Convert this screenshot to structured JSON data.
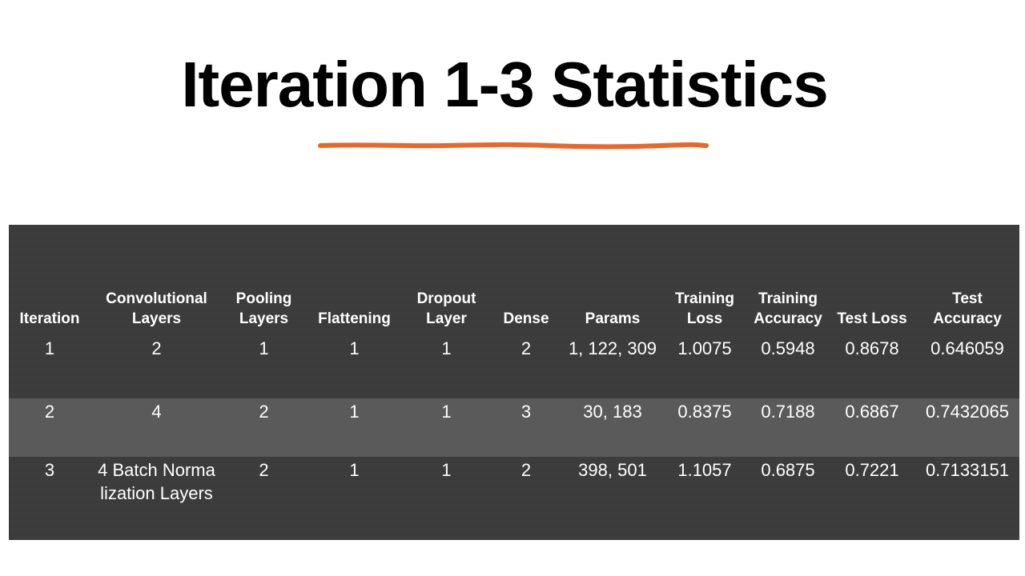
{
  "slide": {
    "title": "Iteration 1-3 Statistics",
    "accent_color": "#e8672b",
    "table_background": "#3b3b3b",
    "stripe_background": "#5a5a5a"
  },
  "table": {
    "headers": [
      "Iteration",
      "Convolutional Layers",
      "Pooling Layers",
      "Flattening",
      "Dropout Layer",
      "Dense",
      "Params",
      "Training Loss",
      "Training Accuracy",
      "Test Loss",
      "Test Accuracy"
    ],
    "rows": [
      [
        "1",
        "2",
        "1",
        "1",
        "1",
        "2",
        "1, 122, 309",
        "1.0075",
        "0.5948",
        "0.8678",
        "0.646059"
      ],
      [
        "2",
        "4",
        "2",
        "1",
        "1",
        "3",
        "30, 183",
        "0.8375",
        "0.7188",
        "0.6867",
        "0.7432065"
      ],
      [
        "3",
        "4 Batch Normalization Layers",
        "2",
        "1",
        "1",
        "2",
        "398, 501",
        "1.1057",
        "0.6875",
        "0.7221",
        "0.7133151"
      ]
    ]
  }
}
